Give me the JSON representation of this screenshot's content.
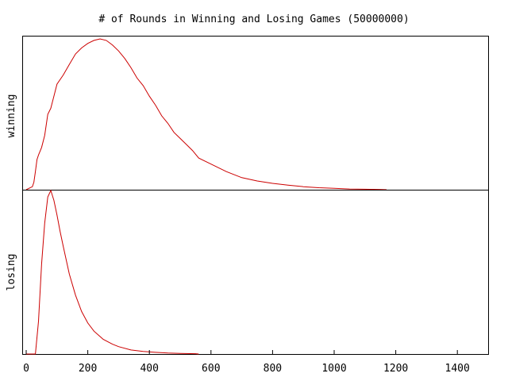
{
  "chart_data": {
    "type": "line",
    "title": "# of Rounds in Winning and Losing Games (50000000)",
    "xlabel": "",
    "xlim": [
      0,
      1500
    ],
    "x_ticks": [
      0,
      200,
      400,
      600,
      800,
      1000,
      1200,
      1400
    ],
    "grid": false,
    "legend": "none",
    "panels": [
      {
        "ylabel": "winning",
        "ylim": [
          0,
          1
        ],
        "series": [
          {
            "color": "#cc0000",
            "x": [
              0,
              20,
              25,
              30,
              35,
              40,
              50,
              60,
              70,
              80,
              90,
              100,
              120,
              140,
              160,
              180,
              200,
              220,
              240,
              260,
              280,
              300,
              320,
              340,
              360,
              380,
              400,
              420,
              440,
              460,
              480,
              500,
              520,
              540,
              560,
              600,
              650,
              700,
              750,
              800,
              850,
              900,
              950,
              1000,
              1050,
              1100,
              1150,
              1170
            ],
            "y": [
              0.0,
              0.02,
              0.05,
              0.12,
              0.2,
              0.23,
              0.28,
              0.36,
              0.5,
              0.54,
              0.62,
              0.7,
              0.76,
              0.83,
              0.9,
              0.94,
              0.97,
              0.99,
              1.0,
              0.99,
              0.96,
              0.92,
              0.87,
              0.81,
              0.74,
              0.69,
              0.62,
              0.56,
              0.49,
              0.44,
              0.38,
              0.34,
              0.3,
              0.26,
              0.21,
              0.17,
              0.12,
              0.08,
              0.058,
              0.042,
              0.03,
              0.02,
              0.013,
              0.009,
              0.005,
              0.003,
              0.001,
              0.0
            ]
          }
        ]
      },
      {
        "ylabel": "losing",
        "ylim": [
          0,
          1
        ],
        "series": [
          {
            "color": "#cc0000",
            "x": [
              0,
              30,
              40,
              50,
              60,
              70,
              80,
              90,
              100,
              110,
              120,
              140,
              160,
              180,
              200,
              220,
              250,
              280,
              300,
              340,
              380,
              420,
              460,
              500,
              550,
              560
            ],
            "y": [
              0.0,
              0.0,
              0.2,
              0.55,
              0.8,
              0.96,
              1.0,
              0.94,
              0.85,
              0.75,
              0.66,
              0.49,
              0.36,
              0.26,
              0.19,
              0.14,
              0.09,
              0.06,
              0.045,
              0.025,
              0.016,
              0.01,
              0.006,
              0.004,
              0.002,
              0.0
            ]
          }
        ]
      }
    ]
  }
}
